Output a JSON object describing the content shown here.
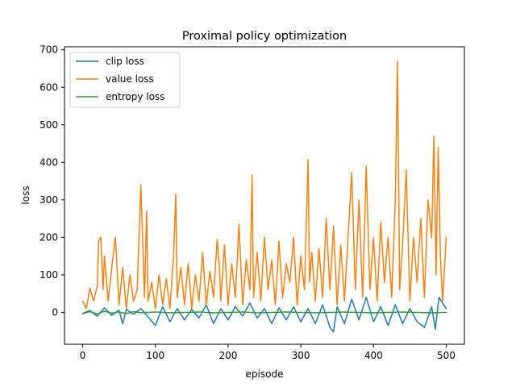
{
  "chart_data": {
    "type": "line",
    "title": "Proximal policy optimization",
    "xlabel": "episode",
    "ylabel": "loss",
    "xlim": [
      -25,
      525
    ],
    "ylim": [
      -85,
      708
    ],
    "xticks": [
      0,
      100,
      200,
      300,
      400,
      500
    ],
    "yticks": [
      0,
      100,
      200,
      300,
      400,
      500,
      600,
      700
    ],
    "grid": false,
    "legend": "top-left",
    "series": [
      {
        "name": "clip loss",
        "color": "#1f77b4",
        "x": [
          0,
          10,
          20,
          30,
          40,
          50,
          55,
          60,
          70,
          80,
          90,
          100,
          110,
          120,
          130,
          140,
          150,
          160,
          170,
          180,
          190,
          200,
          210,
          220,
          230,
          240,
          250,
          260,
          270,
          280,
          290,
          300,
          310,
          320,
          330,
          340,
          345,
          350,
          360,
          370,
          380,
          390,
          400,
          410,
          420,
          430,
          440,
          450,
          460,
          470,
          480,
          485,
          490,
          500
        ],
        "values": [
          -3,
          5,
          -10,
          12,
          -8,
          6,
          -30,
          8,
          -5,
          10,
          -12,
          -35,
          15,
          -25,
          10,
          -20,
          8,
          -15,
          20,
          -30,
          10,
          -20,
          15,
          -10,
          25,
          -15,
          10,
          -30,
          12,
          -20,
          15,
          -25,
          10,
          -30,
          20,
          -40,
          -52,
          15,
          -30,
          35,
          -20,
          40,
          -25,
          15,
          -35,
          20,
          -30,
          10,
          -25,
          -40,
          15,
          -45,
          40,
          10
        ]
      },
      {
        "name": "value loss",
        "color": "#ff7f0e",
        "x": [
          0,
          5,
          10,
          15,
          20,
          22,
          25,
          28,
          30,
          35,
          40,
          45,
          50,
          55,
          60,
          65,
          70,
          75,
          80,
          85,
          88,
          90,
          95,
          100,
          105,
          110,
          115,
          120,
          125,
          128,
          130,
          135,
          140,
          145,
          150,
          155,
          160,
          165,
          170,
          175,
          180,
          185,
          188,
          190,
          195,
          200,
          205,
          210,
          215,
          220,
          225,
          230,
          233,
          235,
          240,
          245,
          250,
          255,
          260,
          265,
          270,
          275,
          280,
          285,
          290,
          295,
          300,
          305,
          310,
          312,
          315,
          320,
          325,
          330,
          335,
          340,
          345,
          350,
          355,
          360,
          365,
          370,
          375,
          380,
          385,
          390,
          395,
          400,
          405,
          410,
          415,
          420,
          425,
          430,
          433,
          436,
          440,
          445,
          450,
          455,
          460,
          465,
          470,
          475,
          480,
          483,
          486,
          489,
          492,
          495,
          500
        ],
        "values": [
          30,
          10,
          65,
          30,
          70,
          190,
          200,
          60,
          150,
          30,
          120,
          200,
          20,
          120,
          10,
          100,
          30,
          60,
          340,
          40,
          270,
          30,
          80,
          10,
          100,
          20,
          90,
          10,
          150,
          315,
          40,
          120,
          20,
          130,
          10,
          100,
          30,
          160,
          20,
          110,
          40,
          195,
          120,
          30,
          180,
          20,
          130,
          40,
          235,
          20,
          140,
          60,
          367,
          40,
          160,
          30,
          200,
          60,
          140,
          20,
          190,
          40,
          130,
          80,
          200,
          20,
          150,
          60,
          408,
          80,
          160,
          30,
          170,
          40,
          250,
          60,
          230,
          20,
          180,
          30,
          200,
          372,
          60,
          300,
          40,
          390,
          60,
          200,
          30,
          240,
          80,
          200,
          40,
          300,
          670,
          60,
          180,
          380,
          30,
          200,
          80,
          250,
          40,
          300,
          200,
          470,
          100,
          440,
          150,
          30,
          200
        ]
      },
      {
        "name": "entropy loss",
        "color": "#2ca02c",
        "x": [
          0,
          10,
          20,
          30,
          40,
          50,
          60,
          70,
          80,
          90,
          100,
          120,
          140,
          160,
          180,
          200,
          220,
          240,
          260,
          280,
          300,
          320,
          340,
          360,
          380,
          400,
          420,
          440,
          460,
          480,
          500
        ],
        "values": [
          -3,
          2,
          -4,
          3,
          -2,
          1,
          -3,
          2,
          -1,
          0,
          1,
          -1,
          0,
          1,
          -1,
          0,
          1,
          -1,
          0,
          1,
          0,
          -1,
          0,
          1,
          0,
          -1,
          0,
          1,
          0,
          -1,
          0
        ]
      }
    ]
  }
}
